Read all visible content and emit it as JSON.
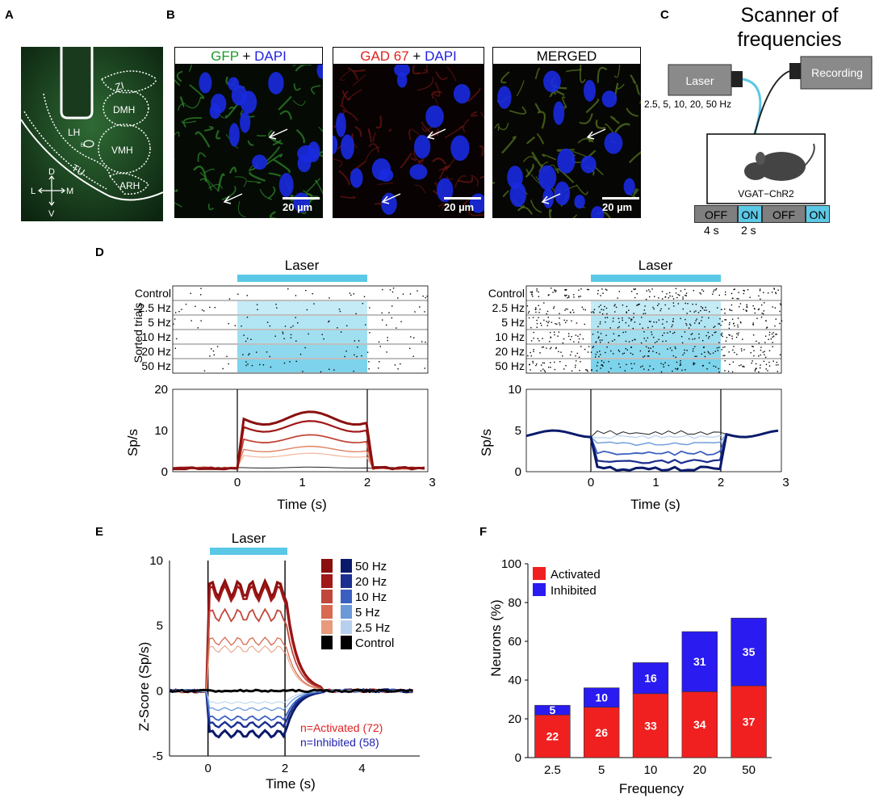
{
  "panels": {
    "A": "A",
    "B": "B",
    "C": "C",
    "D": "D",
    "E": "E",
    "F": "F"
  },
  "panelA": {
    "regions": [
      "ZI",
      "DMH",
      "LH",
      "VMH",
      "TU",
      "ARH"
    ],
    "fx": "fx",
    "axes": {
      "dorsal": "D",
      "ventral": "V",
      "lateral": "L",
      "medial": "M"
    }
  },
  "panelB": {
    "gfp_title": {
      "stain": "GFP",
      "plus": " + ",
      "dapi": "DAPI"
    },
    "gad_title": {
      "stain": "GAD 67",
      "plus": " + ",
      "dapi": "DAPI"
    },
    "merged_title": "MERGED",
    "scale_bar": "20 µm"
  },
  "panelC": {
    "title_line1": "Scanner of",
    "title_line2": "frequencies",
    "laser": "Laser",
    "recording": "Recording",
    "frequencies": "2.5, 5, 10, 20, 50 Hz",
    "mouse_label": "VGAT−ChR2",
    "protocol": [
      "OFF",
      "ON",
      "OFF",
      "ON"
    ],
    "off_duration": "4 s",
    "on_duration": "2 s",
    "colors": {
      "on": "#5bc8e6",
      "off": "#7f7f7f"
    }
  },
  "panelD": {
    "laser_label": "Laser",
    "raster_ylabel": "Sorted trials",
    "trial_rows": [
      "Control",
      "2.5 Hz",
      "5 Hz",
      "10 Hz",
      "20 Hz",
      "50 Hz"
    ],
    "rate_ylabel": "Sp/s",
    "xlabel": "Time (s)",
    "left_ticks_y": [
      "0",
      "10",
      "20"
    ],
    "right_ticks_y": [
      "0",
      "5",
      "10"
    ],
    "ticks_x": [
      "0",
      "1",
      "2",
      "3"
    ]
  },
  "panelE": {
    "laser_label": "Laser",
    "ylabel": "Z-Score (Sp/s)",
    "xlabel": "Time (s)",
    "ticks_y": [
      "-5",
      "0",
      "5",
      "10"
    ],
    "ticks_x": [
      "0",
      "2",
      "4"
    ],
    "legend": [
      "50 Hz",
      "20 Hz",
      "10 Hz",
      "5 Hz",
      "2.5 Hz",
      "Control"
    ],
    "n_activated": "n=Activated (72)",
    "n_inhibited": "n=Inhibited (58)"
  },
  "chart_data": {
    "type": "bar",
    "stacked": true,
    "title": "",
    "xlabel": "Frequency",
    "ylabel": "Neurons (%)",
    "ylim": [
      0,
      100
    ],
    "yticks": [
      "0",
      "20",
      "40",
      "60",
      "80",
      "100"
    ],
    "categories": [
      "2.5",
      "5",
      "10",
      "20",
      "50"
    ],
    "series": [
      {
        "name": "Activated",
        "color": "#f02020",
        "values": [
          22,
          26,
          33,
          34,
          37
        ],
        "labels": [
          "22",
          "26",
          "33",
          "34",
          "37"
        ]
      },
      {
        "name": "Inhibited",
        "color": "#2a1bf0",
        "values": [
          5,
          10,
          16,
          31,
          35
        ],
        "labels": [
          "5",
          "10",
          "16",
          "31",
          "35"
        ]
      }
    ],
    "legend": "top-left"
  }
}
